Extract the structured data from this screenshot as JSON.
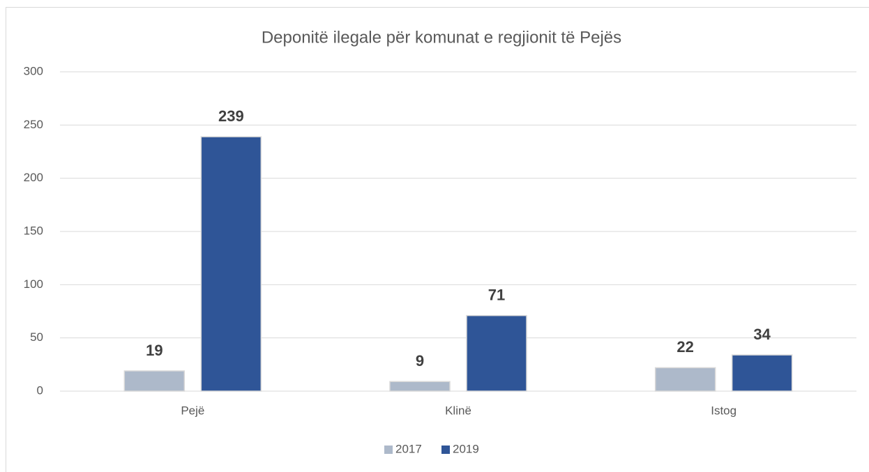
{
  "chart_data": {
    "type": "bar",
    "title": "Deponitë ilegale për komunat e regjionit të Pejës",
    "categories": [
      "Pejë",
      "Klinë",
      "Istog"
    ],
    "series": [
      {
        "name": "2017",
        "color": "#adb9ca",
        "values": [
          19,
          9,
          22
        ]
      },
      {
        "name": "2019",
        "color": "#2f5597",
        "values": [
          239,
          71,
          34
        ]
      }
    ],
    "ylim": [
      0,
      300
    ],
    "yticks": [
      0,
      50,
      100,
      150,
      200,
      250,
      300
    ],
    "grid": true,
    "legend": "bottom",
    "data_labels": true
  }
}
